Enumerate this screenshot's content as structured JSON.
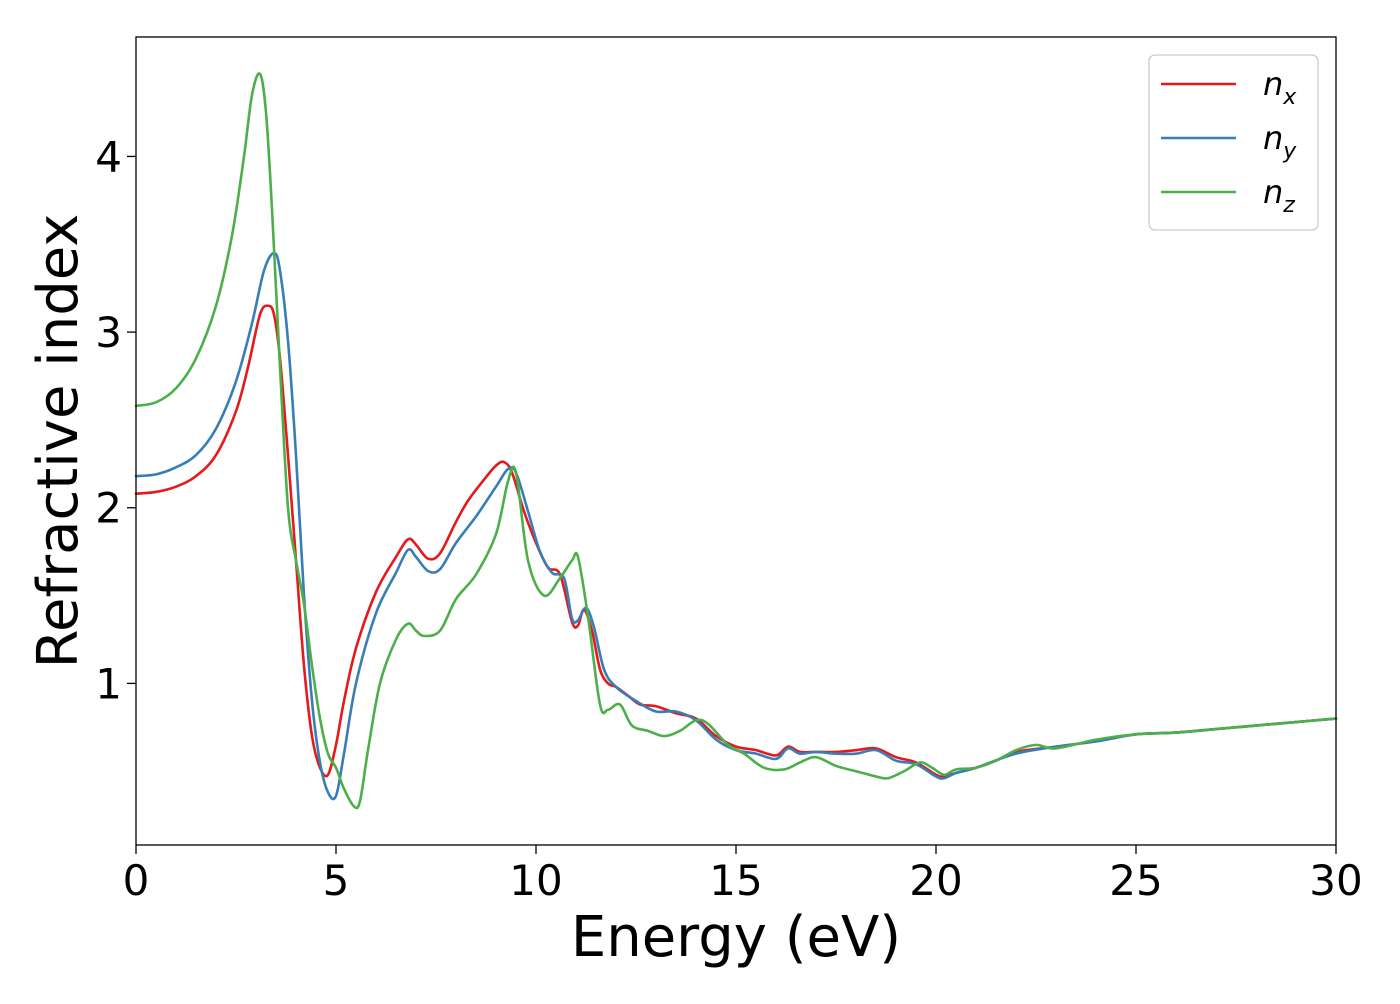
{
  "chart_data": {
    "type": "line",
    "title": "",
    "xlabel": "Energy (eV)",
    "ylabel": "Refractive index",
    "xlim": [
      0,
      30
    ],
    "ylim": [
      0.08,
      4.68
    ],
    "xticks": [
      "0",
      "5",
      "10",
      "15",
      "20",
      "25",
      "30"
    ],
    "yticks": [
      "1",
      "2",
      "3",
      "4"
    ],
    "grid": false,
    "legend_position": "top-right",
    "series": [
      {
        "name": "n",
        "subscript": "x",
        "color": "#e41a1c",
        "x": [
          0.0,
          0.5,
          1.0,
          1.5,
          2.0,
          2.5,
          2.8,
          3.1,
          3.3,
          3.45,
          3.6,
          3.8,
          4.0,
          4.2,
          4.4,
          4.6,
          4.8,
          5.0,
          5.2,
          5.5,
          6.0,
          6.5,
          6.8,
          7.0,
          7.3,
          7.6,
          8.0,
          8.3,
          8.7,
          9.0,
          9.2,
          9.4,
          9.7,
          10.0,
          10.3,
          10.6,
          10.9,
          11.05,
          11.2,
          11.4,
          11.6,
          11.8,
          12.0,
          12.3,
          12.6,
          13.0,
          13.5,
          14.0,
          14.5,
          15.0,
          15.5,
          16.0,
          16.3,
          16.6,
          17.0,
          17.5,
          18.0,
          18.5,
          19.0,
          19.5,
          20.0,
          20.2,
          20.5,
          21.0,
          21.5,
          22.0,
          23.0,
          24.0,
          25.0,
          26.0,
          27.0,
          28.0,
          29.0,
          30.0
        ],
        "y": [
          2.08,
          2.09,
          2.12,
          2.18,
          2.3,
          2.55,
          2.8,
          3.1,
          3.15,
          3.1,
          2.85,
          2.3,
          1.7,
          1.1,
          0.7,
          0.52,
          0.48,
          0.65,
          0.9,
          1.2,
          1.52,
          1.72,
          1.82,
          1.79,
          1.71,
          1.74,
          1.92,
          2.04,
          2.16,
          2.24,
          2.26,
          2.2,
          1.98,
          1.8,
          1.66,
          1.62,
          1.35,
          1.33,
          1.42,
          1.3,
          1.08,
          1.0,
          0.98,
          0.93,
          0.88,
          0.87,
          0.83,
          0.8,
          0.7,
          0.64,
          0.62,
          0.59,
          0.64,
          0.61,
          0.61,
          0.61,
          0.62,
          0.63,
          0.58,
          0.55,
          0.48,
          0.47,
          0.49,
          0.52,
          0.56,
          0.61,
          0.64,
          0.67,
          0.71,
          0.72,
          0.74,
          0.76,
          0.78,
          0.8
        ]
      },
      {
        "name": "n",
        "subscript": "y",
        "color": "#377eb8",
        "x": [
          0.0,
          0.5,
          1.0,
          1.5,
          2.0,
          2.5,
          2.9,
          3.2,
          3.45,
          3.6,
          3.8,
          4.0,
          4.2,
          4.4,
          4.6,
          4.8,
          5.0,
          5.2,
          5.5,
          6.0,
          6.5,
          6.8,
          7.0,
          7.3,
          7.6,
          8.0,
          8.5,
          9.0,
          9.3,
          9.5,
          9.8,
          10.1,
          10.4,
          10.7,
          10.9,
          11.05,
          11.25,
          11.45,
          11.7,
          12.0,
          12.5,
          13.0,
          13.5,
          14.0,
          14.5,
          15.0,
          15.5,
          16.0,
          16.3,
          16.6,
          17.0,
          17.5,
          18.0,
          18.5,
          19.0,
          19.5,
          20.0,
          20.2,
          20.5,
          21.0,
          22.0,
          23.0,
          24.0,
          25.0,
          26.0,
          27.0,
          28.0,
          29.0,
          30.0
        ],
        "y": [
          2.18,
          2.19,
          2.23,
          2.3,
          2.45,
          2.72,
          3.05,
          3.35,
          3.45,
          3.35,
          2.95,
          2.3,
          1.5,
          0.9,
          0.55,
          0.38,
          0.36,
          0.6,
          1.0,
          1.4,
          1.63,
          1.76,
          1.72,
          1.64,
          1.65,
          1.8,
          1.95,
          2.12,
          2.22,
          2.2,
          1.98,
          1.75,
          1.63,
          1.6,
          1.37,
          1.36,
          1.43,
          1.32,
          1.08,
          0.98,
          0.9,
          0.84,
          0.84,
          0.79,
          0.68,
          0.62,
          0.6,
          0.57,
          0.63,
          0.6,
          0.61,
          0.6,
          0.6,
          0.62,
          0.56,
          0.54,
          0.47,
          0.46,
          0.49,
          0.52,
          0.6,
          0.64,
          0.67,
          0.71,
          0.72,
          0.74,
          0.76,
          0.78,
          0.8
        ]
      },
      {
        "name": "n",
        "subscript": "z",
        "color": "#4daf4a",
        "x": [
          0.0,
          0.5,
          1.0,
          1.5,
          2.0,
          2.4,
          2.7,
          2.9,
          3.1,
          3.25,
          3.4,
          3.6,
          3.8,
          4.0,
          4.2,
          4.4,
          4.6,
          4.8,
          5.0,
          5.2,
          5.45,
          5.6,
          5.8,
          6.1,
          6.5,
          6.8,
          7.0,
          7.2,
          7.6,
          8.0,
          8.5,
          9.0,
          9.3,
          9.5,
          9.8,
          10.2,
          10.6,
          10.9,
          11.05,
          11.3,
          11.6,
          11.8,
          12.1,
          12.4,
          12.8,
          13.2,
          13.6,
          14.0,
          14.3,
          14.8,
          15.2,
          15.7,
          16.2,
          16.6,
          17.0,
          17.5,
          18.0,
          18.5,
          18.8,
          19.2,
          19.6,
          19.9,
          20.2,
          20.5,
          21.0,
          21.5,
          22.0,
          22.5,
          23.0,
          24.0,
          25.0,
          26.0,
          27.0,
          28.0,
          29.0,
          30.0
        ],
        "y": [
          2.58,
          2.6,
          2.68,
          2.85,
          3.15,
          3.55,
          4.0,
          4.35,
          4.47,
          4.25,
          3.7,
          2.8,
          2.0,
          1.7,
          1.45,
          1.1,
          0.8,
          0.6,
          0.52,
          0.4,
          0.3,
          0.33,
          0.62,
          1.0,
          1.25,
          1.34,
          1.3,
          1.27,
          1.3,
          1.48,
          1.62,
          1.85,
          2.15,
          2.2,
          1.7,
          1.5,
          1.6,
          1.7,
          1.72,
          1.38,
          0.88,
          0.85,
          0.88,
          0.76,
          0.73,
          0.7,
          0.73,
          0.79,
          0.77,
          0.65,
          0.6,
          0.52,
          0.51,
          0.55,
          0.58,
          0.53,
          0.5,
          0.47,
          0.46,
          0.5,
          0.55,
          0.52,
          0.48,
          0.51,
          0.52,
          0.56,
          0.62,
          0.65,
          0.63,
          0.68,
          0.71,
          0.72,
          0.74,
          0.76,
          0.78,
          0.8
        ]
      }
    ]
  }
}
